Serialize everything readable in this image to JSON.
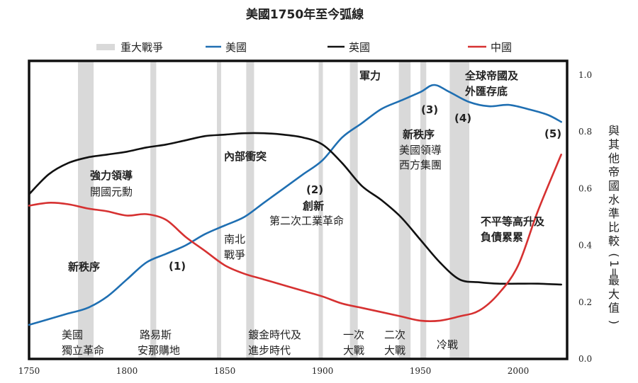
{
  "chart_data": {
    "type": "line",
    "title": "美國1750年至今弧線",
    "ylabel": "與其他帝國水準比較(1=最大值)",
    "xlim": [
      1750,
      2025
    ],
    "ylim": [
      0,
      1.0
    ],
    "x_ticks": [
      "1750",
      "1800",
      "1850",
      "1900",
      "1950",
      "2000"
    ],
    "y_ticks": [
      "0.0",
      "0.2",
      "0.4",
      "0.6",
      "0.8",
      "1.0"
    ],
    "legend": {
      "wars": "重大戰爭",
      "entries": [
        "美國",
        "英國",
        "中國"
      ]
    },
    "war_bands": [
      [
        1775,
        1783
      ],
      [
        1812,
        1815
      ],
      [
        1846,
        1848
      ],
      [
        1861,
        1865
      ],
      [
        1898,
        1899
      ],
      [
        1914,
        1918
      ],
      [
        1939,
        1945
      ],
      [
        1950,
        1953
      ],
      [
        1965,
        1975
      ]
    ],
    "series": [
      {
        "name": "美國",
        "color": "#1f6fb2",
        "points": [
          [
            1750,
            0.12
          ],
          [
            1760,
            0.14
          ],
          [
            1770,
            0.16
          ],
          [
            1780,
            0.18
          ],
          [
            1790,
            0.22
          ],
          [
            1800,
            0.28
          ],
          [
            1810,
            0.34
          ],
          [
            1820,
            0.37
          ],
          [
            1830,
            0.4
          ],
          [
            1840,
            0.44
          ],
          [
            1850,
            0.47
          ],
          [
            1860,
            0.5
          ],
          [
            1870,
            0.55
          ],
          [
            1880,
            0.6
          ],
          [
            1890,
            0.65
          ],
          [
            1900,
            0.7
          ],
          [
            1910,
            0.78
          ],
          [
            1920,
            0.83
          ],
          [
            1930,
            0.88
          ],
          [
            1940,
            0.91
          ],
          [
            1950,
            0.94
          ],
          [
            1957,
            0.965
          ],
          [
            1965,
            0.94
          ],
          [
            1975,
            0.905
          ],
          [
            1985,
            0.89
          ],
          [
            1995,
            0.895
          ],
          [
            2005,
            0.88
          ],
          [
            2015,
            0.86
          ],
          [
            2022,
            0.835
          ]
        ]
      },
      {
        "name": "英國",
        "color": "#111111",
        "points": [
          [
            1750,
            0.58
          ],
          [
            1760,
            0.65
          ],
          [
            1770,
            0.69
          ],
          [
            1780,
            0.71
          ],
          [
            1790,
            0.72
          ],
          [
            1800,
            0.73
          ],
          [
            1810,
            0.745
          ],
          [
            1820,
            0.755
          ],
          [
            1830,
            0.77
          ],
          [
            1840,
            0.785
          ],
          [
            1850,
            0.79
          ],
          [
            1860,
            0.795
          ],
          [
            1870,
            0.795
          ],
          [
            1880,
            0.79
          ],
          [
            1890,
            0.78
          ],
          [
            1900,
            0.755
          ],
          [
            1910,
            0.69
          ],
          [
            1920,
            0.61
          ],
          [
            1930,
            0.56
          ],
          [
            1940,
            0.5
          ],
          [
            1950,
            0.42
          ],
          [
            1960,
            0.34
          ],
          [
            1970,
            0.28
          ],
          [
            1980,
            0.27
          ],
          [
            1990,
            0.265
          ],
          [
            2000,
            0.265
          ],
          [
            2010,
            0.265
          ],
          [
            2022,
            0.262
          ]
        ]
      },
      {
        "name": "中國",
        "color": "#d63131",
        "points": [
          [
            1750,
            0.54
          ],
          [
            1760,
            0.55
          ],
          [
            1770,
            0.545
          ],
          [
            1780,
            0.53
          ],
          [
            1790,
            0.52
          ],
          [
            1800,
            0.505
          ],
          [
            1810,
            0.51
          ],
          [
            1820,
            0.49
          ],
          [
            1830,
            0.43
          ],
          [
            1840,
            0.38
          ],
          [
            1850,
            0.33
          ],
          [
            1860,
            0.3
          ],
          [
            1870,
            0.28
          ],
          [
            1880,
            0.26
          ],
          [
            1890,
            0.24
          ],
          [
            1900,
            0.22
          ],
          [
            1910,
            0.195
          ],
          [
            1920,
            0.18
          ],
          [
            1930,
            0.165
          ],
          [
            1940,
            0.15
          ],
          [
            1950,
            0.135
          ],
          [
            1960,
            0.135
          ],
          [
            1970,
            0.15
          ],
          [
            1980,
            0.17
          ],
          [
            1990,
            0.23
          ],
          [
            2000,
            0.33
          ],
          [
            2010,
            0.52
          ],
          [
            2022,
            0.72
          ]
        ]
      }
    ],
    "annotations": {
      "independence": [
        "美國",
        "獨立革命"
      ],
      "louisiana": [
        "路易斯",
        "安那購地"
      ],
      "gilded": [
        "鍍金時代及",
        "進步時代"
      ],
      "ww1": [
        "一次",
        "大戰"
      ],
      "ww2": [
        "二次",
        "大戰"
      ],
      "coldwar": "冷戰",
      "strong_leaders": "強力領導",
      "founders": "開國元勳",
      "new_order_left": "新秩序",
      "marker1": "(1)",
      "civilwar": [
        "南北",
        "戰爭"
      ],
      "internal_conflict": "內部衝突",
      "marker2": "(2)",
      "innovation": "創新",
      "industrial": "第二次工業革命",
      "military": "軍力",
      "marker3": "(3)",
      "marker4": "(4)",
      "new_order": "新秩序",
      "us_led": "美國領導",
      "western_bloc": "西方集團",
      "global_empire": [
        "全球帝國及",
        "外匯存底"
      ],
      "marker5": "(5)",
      "inequality": [
        "不平等高升及",
        "負債累累"
      ]
    }
  }
}
